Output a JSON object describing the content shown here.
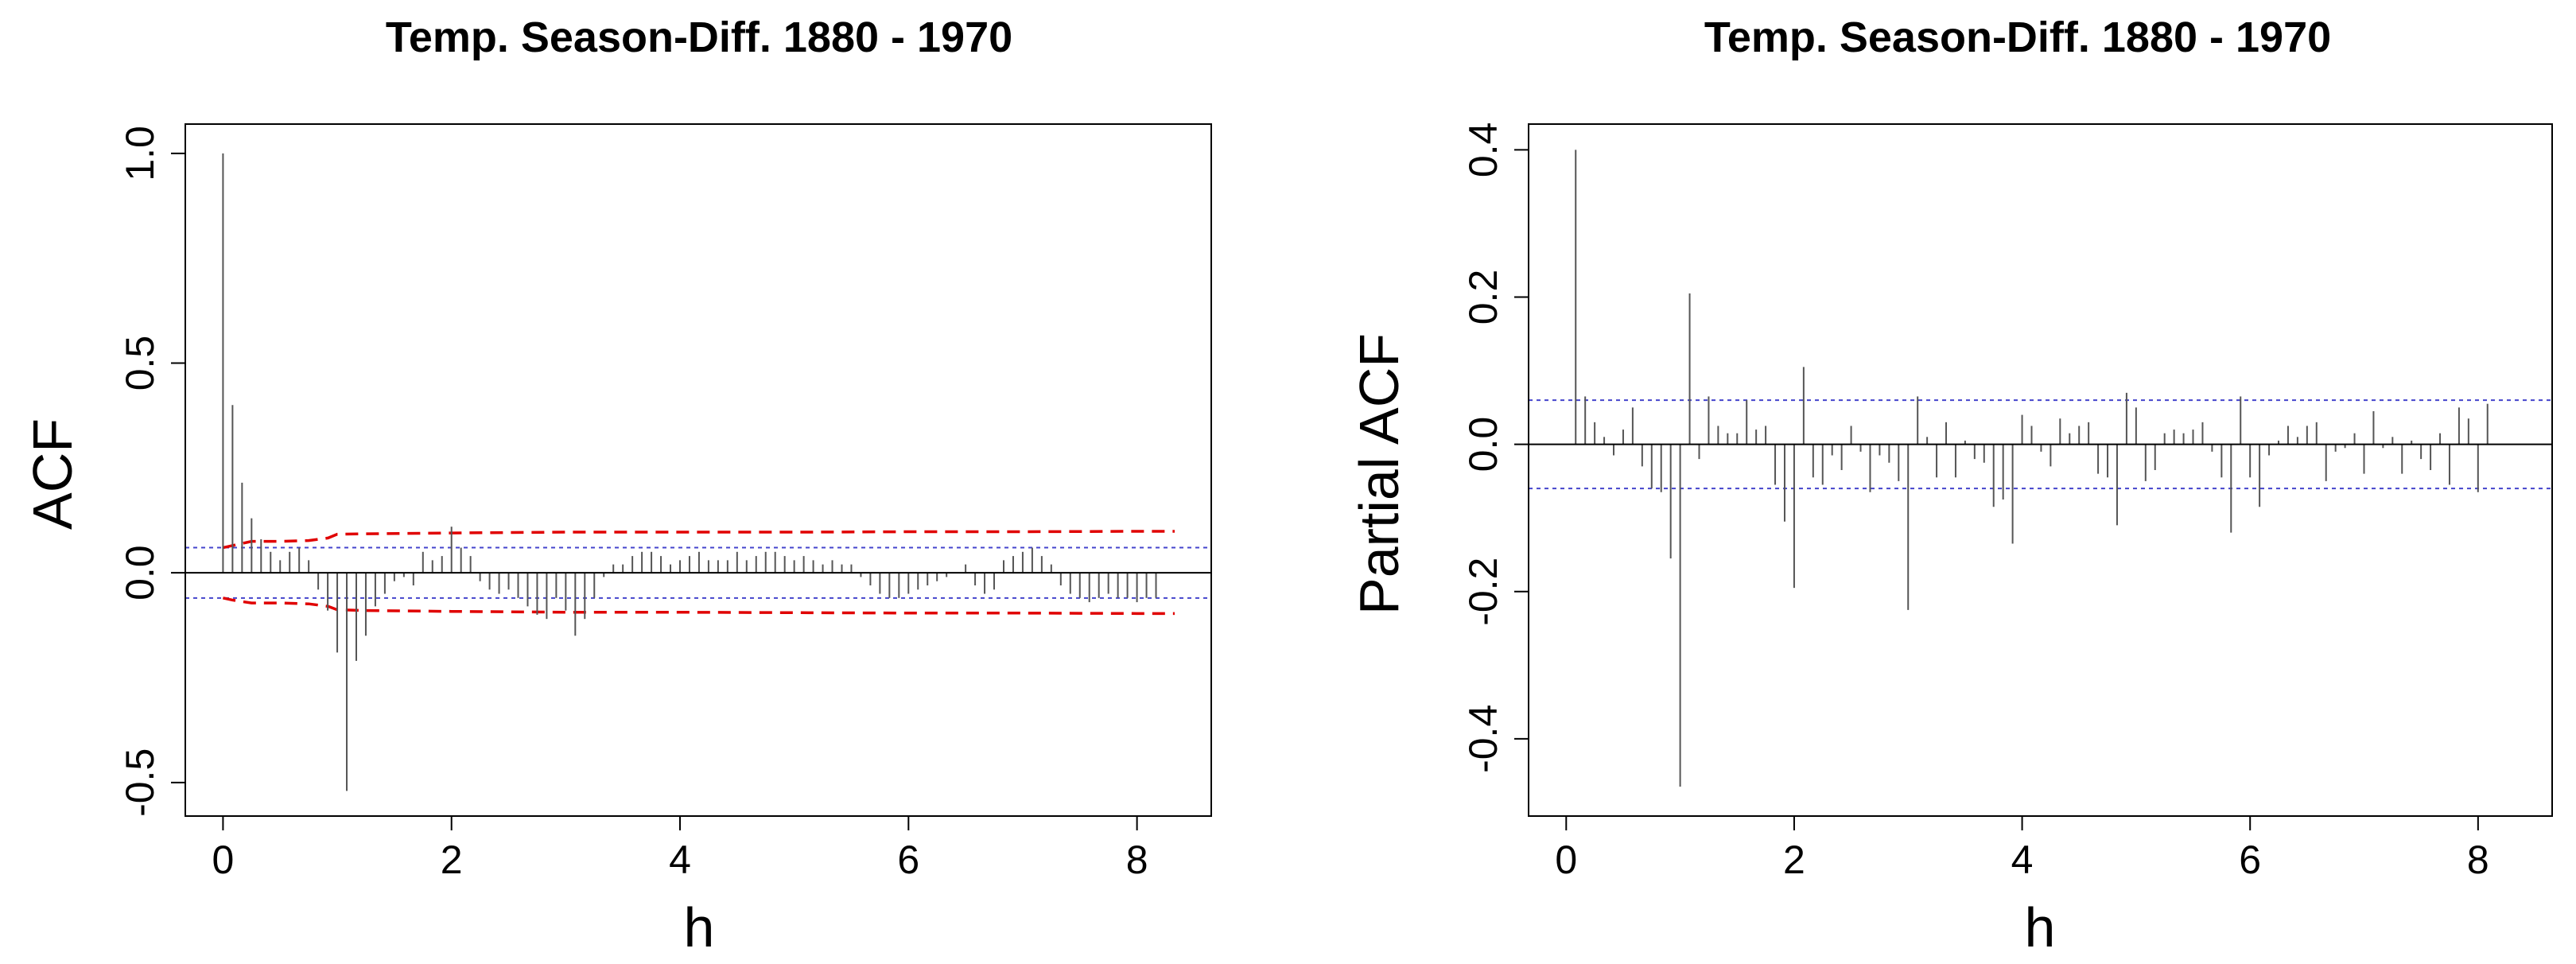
{
  "chart_data": [
    {
      "type": "acf",
      "title": "Temp. Season-Diff. 1880 - 1970",
      "xlabel": "h",
      "ylabel": "ACF",
      "xlim": [
        -0.33,
        8.65
      ],
      "ylim": [
        -0.58,
        1.07
      ],
      "xticks": [
        0,
        2,
        4,
        6,
        8
      ],
      "xtick_labels": [
        "0",
        "2",
        "4",
        "6",
        "8"
      ],
      "yticks": [
        -0.5,
        0.0,
        0.5,
        1.0
      ],
      "ytick_labels": [
        "-0.5",
        "0.0",
        "0.5",
        "1.0"
      ],
      "lag_step": 0.08333,
      "values": [
        1.0,
        0.4,
        0.215,
        0.13,
        0.08,
        0.05,
        0.03,
        0.05,
        0.06,
        0.03,
        -0.04,
        -0.09,
        -0.19,
        -0.52,
        -0.21,
        -0.15,
        -0.08,
        -0.05,
        -0.02,
        -0.01,
        -0.03,
        0.05,
        0.03,
        0.04,
        0.11,
        0.06,
        0.04,
        -0.02,
        -0.04,
        -0.05,
        -0.04,
        -0.06,
        -0.08,
        -0.1,
        -0.11,
        -0.06,
        -0.09,
        -0.15,
        -0.11,
        -0.06,
        -0.01,
        0.02,
        0.02,
        0.04,
        0.05,
        0.05,
        0.04,
        0.02,
        0.03,
        0.04,
        0.05,
        0.03,
        0.03,
        0.03,
        0.05,
        0.03,
        0.04,
        0.05,
        0.05,
        0.04,
        0.03,
        0.04,
        0.03,
        0.02,
        0.03,
        0.02,
        0.02,
        -0.01,
        -0.03,
        -0.05,
        -0.06,
        -0.06,
        -0.05,
        -0.04,
        -0.03,
        -0.02,
        -0.01,
        0.0,
        0.02,
        -0.03,
        -0.05,
        -0.04,
        0.03,
        0.04,
        0.05,
        0.06,
        0.04,
        0.02,
        -0.03,
        -0.05,
        -0.06,
        -0.07,
        -0.06,
        -0.05,
        -0.06,
        -0.06,
        -0.07,
        -0.06,
        -0.06
      ],
      "white_noise_band": [
        -0.06,
        0.06
      ],
      "bartlett_band": {
        "x": [
          0,
          0.083,
          0.25,
          0.5,
          0.75,
          0.92,
          1.0,
          1.25,
          2.0,
          3.0,
          4.0,
          5.0,
          6.0,
          7.0,
          8.0,
          8.33
        ],
        "upper": [
          0.06,
          0.065,
          0.075,
          0.075,
          0.077,
          0.083,
          0.092,
          0.093,
          0.095,
          0.097,
          0.097,
          0.097,
          0.098,
          0.098,
          0.099,
          0.099
        ],
        "lower": [
          -0.06,
          -0.065,
          -0.072,
          -0.072,
          -0.074,
          -0.08,
          -0.088,
          -0.09,
          -0.092,
          -0.094,
          -0.094,
          -0.095,
          -0.096,
          -0.096,
          -0.097,
          -0.097
        ]
      },
      "colors": {
        "bars": "#555555",
        "white_noise_band": "#4444cc",
        "bartlett_band": "#e00000",
        "axes": "#000000"
      }
    },
    {
      "type": "pacf",
      "title": "Temp. Season-Diff. 1880 - 1970",
      "xlabel": "h",
      "ylabel": "Partial ACF",
      "xlim": [
        -0.33,
        8.65
      ],
      "ylim": [
        -0.505,
        0.435
      ],
      "xticks": [
        0,
        2,
        4,
        6,
        8
      ],
      "xtick_labels": [
        "0",
        "2",
        "4",
        "6",
        "8"
      ],
      "yticks": [
        -0.4,
        -0.2,
        0.0,
        0.2,
        0.4
      ],
      "ytick_labels": [
        "-0.4",
        "-0.2",
        "0.0",
        "0.2",
        "0.4"
      ],
      "lag_step": 0.08333,
      "values": [
        0.4,
        0.065,
        0.03,
        0.01,
        -0.015,
        0.02,
        0.05,
        -0.03,
        -0.06,
        -0.065,
        -0.155,
        -0.465,
        0.205,
        -0.02,
        0.065,
        0.025,
        0.015,
        0.015,
        0.06,
        0.02,
        0.025,
        -0.055,
        -0.105,
        -0.195,
        0.105,
        -0.045,
        -0.055,
        -0.015,
        -0.035,
        0.025,
        -0.01,
        -0.065,
        -0.015,
        -0.025,
        -0.05,
        -0.225,
        0.065,
        0.01,
        -0.045,
        0.03,
        -0.045,
        0.005,
        -0.02,
        -0.025,
        -0.085,
        -0.075,
        -0.135,
        0.04,
        0.025,
        -0.01,
        -0.03,
        0.035,
        0.015,
        0.025,
        0.03,
        -0.04,
        -0.045,
        -0.11,
        0.07,
        0.05,
        -0.05,
        -0.035,
        0.015,
        0.02,
        0.015,
        0.02,
        0.03,
        -0.01,
        -0.045,
        -0.12,
        0.065,
        -0.045,
        -0.085,
        -0.015,
        0.005,
        0.025,
        0.01,
        0.025,
        0.03,
        -0.05,
        -0.01,
        -0.005,
        0.015,
        -0.04,
        0.045,
        -0.005,
        0.01,
        -0.04,
        0.005,
        -0.02,
        -0.035,
        0.015,
        -0.055,
        0.05,
        0.035,
        -0.065,
        0.055
      ],
      "white_noise_band": [
        -0.06,
        0.06
      ],
      "colors": {
        "bars": "#555555",
        "white_noise_band": "#4444cc",
        "axes": "#000000"
      }
    }
  ]
}
